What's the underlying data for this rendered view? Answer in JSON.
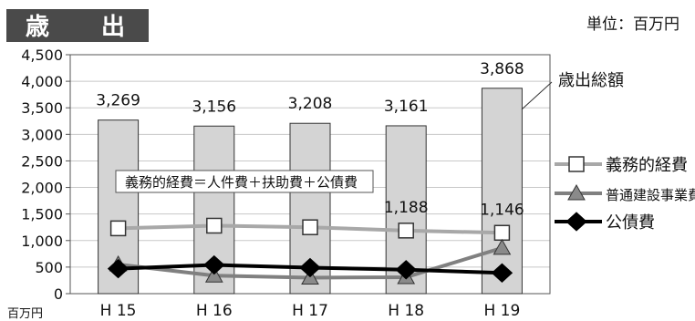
{
  "chart_data": {
    "type": "bar",
    "title": "歳 出",
    "unit_label": "単位：百万円",
    "ylabel": "百万円",
    "categories": [
      "H 15",
      "H 16",
      "H 17",
      "H 18",
      "H 19"
    ],
    "ylim": [
      0,
      4500
    ],
    "yticks": [
      "0",
      "500",
      "1,000",
      "1,500",
      "2,000",
      "2,500",
      "3,000",
      "3,500",
      "4,000",
      "4,500"
    ],
    "ytick_values": [
      0,
      500,
      1000,
      1500,
      2000,
      2500,
      3000,
      3500,
      4000,
      4500
    ],
    "bars": {
      "name": "歳出総額",
      "values": [
        3269,
        3156,
        3208,
        3161,
        3868
      ],
      "labels": [
        "3,269",
        "3,156",
        "3,208",
        "3,161",
        "3,868"
      ],
      "color": "#d4d4d4"
    },
    "series": [
      {
        "name": "義務的経費",
        "values": [
          1230,
          1280,
          1250,
          1188,
          1146
        ],
        "color": "#a8a8a8",
        "marker": "square",
        "point_labels": [
          "",
          "",
          "",
          "1,188",
          "1,146"
        ]
      },
      {
        "name": "普通建設事業費",
        "values": [
          550,
          340,
          300,
          310,
          860
        ],
        "color": "#808080",
        "marker": "triangle"
      },
      {
        "name": "公債費",
        "values": [
          470,
          540,
          490,
          450,
          390
        ],
        "color": "#000000",
        "marker": "diamond"
      }
    ],
    "annotation": "義務的経費＝人件費＋扶助費＋公債費",
    "legend_position": "right",
    "grid": true
  }
}
